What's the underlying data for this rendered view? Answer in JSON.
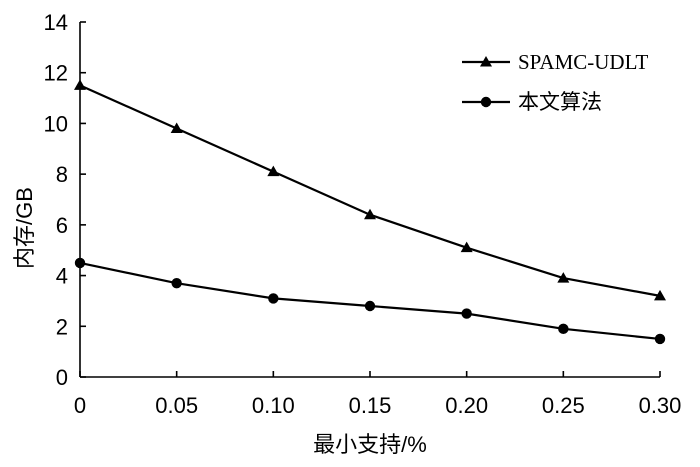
{
  "chart_data": {
    "type": "line",
    "xlabel": "最小支持/%",
    "ylabel": "内存/GB",
    "x": [
      0,
      0.05,
      0.1,
      0.15,
      0.2,
      0.25,
      0.3
    ],
    "x_tick_labels": [
      "0",
      "0.05",
      "0.10",
      "0.15",
      "0.20",
      "0.25",
      "0.30"
    ],
    "y_ticks": [
      0,
      2,
      4,
      6,
      8,
      10,
      12,
      14
    ],
    "y_tick_labels": [
      "0",
      "2",
      "4",
      "6",
      "8",
      "10",
      "12",
      "14"
    ],
    "xlim": [
      0,
      0.3
    ],
    "ylim": [
      0,
      14
    ],
    "grid": false,
    "legend_position": "top-right",
    "series": [
      {
        "name": "SPAMC-UDLT",
        "marker": "triangle",
        "values": [
          11.5,
          9.8,
          8.1,
          6.4,
          5.1,
          3.9,
          3.2
        ]
      },
      {
        "name": "本文算法",
        "marker": "circle",
        "values": [
          4.5,
          3.7,
          3.1,
          2.8,
          2.5,
          1.9,
          1.5
        ]
      }
    ]
  }
}
